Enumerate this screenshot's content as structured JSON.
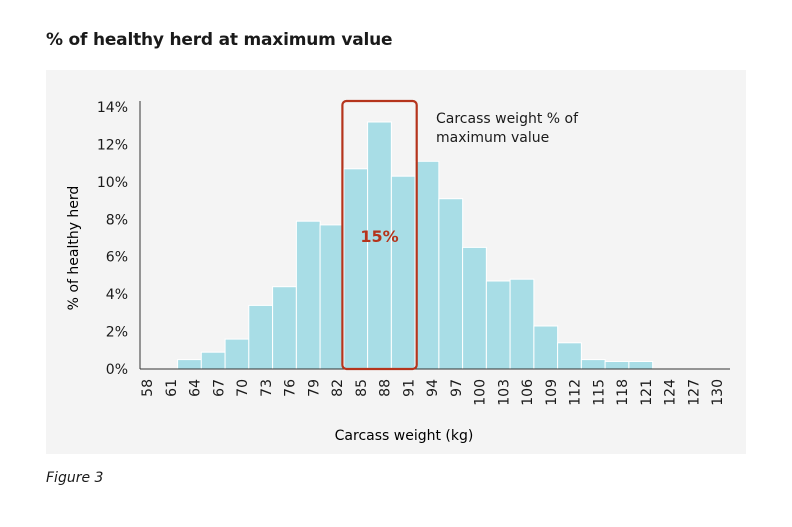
{
  "title": "% of healthy herd at maximum value",
  "caption": "Figure 3",
  "colors": {
    "bar": "#a8dde6",
    "bar_stroke": "#ffffff",
    "highlight": "#b5341c",
    "axis": "#333333",
    "panel": "#f4f4f4"
  },
  "chart_data": {
    "type": "bar",
    "title": "% of healthy herd at maximum value",
    "xlabel": "Carcass weight (kg)",
    "ylabel": "% of healthy herd",
    "ylim": [
      0,
      14
    ],
    "yticks": [
      "0%",
      "2%",
      "4%",
      "6%",
      "8%",
      "10%",
      "12%",
      "14%"
    ],
    "categories": [
      "58",
      "61",
      "64",
      "67",
      "70",
      "73",
      "76",
      "79",
      "82",
      "85",
      "88",
      "91",
      "94",
      "97",
      "100",
      "103",
      "106",
      "109",
      "112",
      "115",
      "118",
      "121",
      "124",
      "127",
      "130"
    ],
    "xtick_labels": [
      "58",
      "61",
      "64",
      "67",
      "70",
      "73",
      "76",
      "79",
      "82",
      "85",
      "88",
      "91",
      "94",
      "97",
      "100",
      "103",
      "106",
      "109",
      "112",
      "115",
      "118",
      "121",
      "124",
      "127",
      "130"
    ],
    "values": [
      0,
      0,
      0.5,
      0.9,
      1.6,
      3.4,
      4.4,
      7.9,
      7.7,
      10.7,
      13.2,
      10.3,
      11.1,
      9.1,
      6.5,
      4.7,
      4.8,
      2.3,
      1.4,
      0.5,
      0.4,
      0.4,
      0,
      0,
      0
    ],
    "grid": false,
    "highlight": {
      "categories": [
        "85",
        "88",
        "91"
      ],
      "label": "15%",
      "annotation": [
        "Carcass weight % of",
        "maximum value"
      ]
    }
  }
}
